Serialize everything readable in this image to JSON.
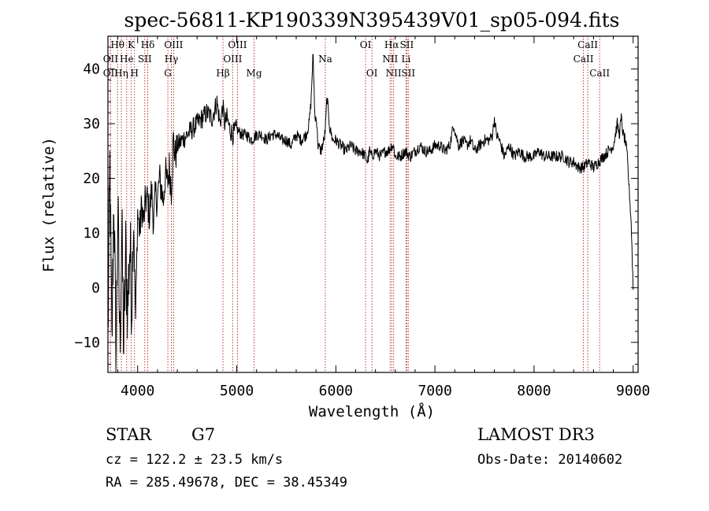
{
  "chart_data": {
    "type": "line",
    "title": "spec-56811-KP190339N395439V01_sp05-094.fits",
    "xlabel": "Wavelength (Å)",
    "ylabel": "Flux (relative)",
    "xlim": [
      3700,
      9050
    ],
    "ylim": [
      -15.5,
      46
    ],
    "xticks": [
      4000,
      5000,
      6000,
      7000,
      8000,
      9000
    ],
    "xtick_labels": [
      "4000",
      "5000",
      "6000",
      "7000",
      "8000",
      "9000"
    ],
    "yticks": [
      -10,
      0,
      10,
      20,
      30,
      40
    ],
    "ytick_labels": [
      "−10",
      "0",
      "10",
      "20",
      "30",
      "40"
    ],
    "series": [
      {
        "name": "flux",
        "x": [
          3700,
          3720,
          3740,
          3760,
          3780,
          3800,
          3820,
          3840,
          3860,
          3880,
          3900,
          3920,
          3940,
          3960,
          3980,
          4000,
          4020,
          4040,
          4060,
          4080,
          4100,
          4120,
          4140,
          4160,
          4180,
          4200,
          4220,
          4240,
          4260,
          4280,
          4300,
          4320,
          4340,
          4360,
          4380,
          4400,
          4450,
          4500,
          4550,
          4600,
          4650,
          4700,
          4750,
          4800,
          4830,
          4860,
          4880,
          4900,
          4930,
          4960,
          5000,
          5050,
          5100,
          5150,
          5200,
          5250,
          5300,
          5350,
          5400,
          5450,
          5500,
          5550,
          5600,
          5650,
          5700,
          5730,
          5750,
          5770,
          5790,
          5800,
          5820,
          5850,
          5880,
          5895,
          5910,
          5940,
          5970,
          6000,
          6050,
          6100,
          6150,
          6200,
          6250,
          6300,
          6320,
          6340,
          6360,
          6400,
          6450,
          6500,
          6530,
          6563,
          6580,
          6600,
          6650,
          6700,
          6750,
          6800,
          6850,
          6900,
          6950,
          7000,
          7050,
          7100,
          7150,
          7190,
          7210,
          7240,
          7280,
          7320,
          7360,
          7400,
          7450,
          7500,
          7550,
          7580,
          7600,
          7620,
          7650,
          7700,
          7750,
          7800,
          7850,
          7900,
          7950,
          8000,
          8050,
          8100,
          8150,
          8200,
          8250,
          8300,
          8350,
          8400,
          8450,
          8500,
          8550,
          8600,
          8650,
          8700,
          8750,
          8800,
          8820,
          8840,
          8860,
          8880,
          8900,
          8920,
          8940,
          8960,
          8980,
          9000
        ],
        "values": [
          -10,
          22,
          -12,
          18,
          -14,
          14,
          -10,
          10,
          -11,
          6,
          -4,
          8,
          -2,
          12,
          -6,
          14,
          10,
          15,
          12,
          16,
          16,
          13,
          18,
          12,
          17,
          16,
          20,
          18,
          16,
          21,
          19,
          22,
          18,
          27,
          24,
          26,
          27,
          28,
          29,
          30,
          31,
          32,
          31,
          34,
          30,
          33,
          30,
          31,
          29,
          28,
          29,
          28,
          28,
          27,
          28,
          28,
          27,
          28,
          28,
          27,
          27,
          26,
          28,
          27,
          28,
          30,
          34,
          43,
          30,
          32,
          26,
          25,
          27,
          29,
          35,
          29,
          27,
          27,
          26,
          25,
          26,
          25,
          25,
          24,
          23,
          25,
          24,
          25,
          24,
          25,
          25,
          26,
          26,
          24,
          24,
          25,
          24,
          25,
          26,
          25,
          25,
          26,
          26,
          25,
          26,
          30,
          28,
          26,
          27,
          26,
          27,
          25,
          26,
          27,
          27,
          28,
          31,
          28,
          27,
          24,
          26,
          24,
          25,
          24,
          24,
          24,
          25,
          24,
          24,
          24,
          24,
          24,
          23,
          23,
          22,
          22,
          23,
          22,
          23,
          24,
          25,
          26,
          28,
          30,
          28,
          31,
          28,
          27,
          24,
          18,
          12,
          0
        ]
      }
    ],
    "annotations": [
      {
        "label": "Hθ",
        "x": 3797,
        "row": 1
      },
      {
        "label": "OII",
        "x": 3727,
        "row": 2
      },
      {
        "label": "OII",
        "x": 3727,
        "row": 3
      },
      {
        "label": "Hη",
        "x": 3835,
        "row": 3
      },
      {
        "label": "He",
        "x": 3889,
        "row": 2
      },
      {
        "label": "K",
        "x": 3934,
        "row": 1
      },
      {
        "label": "H",
        "x": 3968,
        "row": 3
      },
      {
        "label": "Hδ",
        "x": 4102,
        "row": 1
      },
      {
        "label": "SII",
        "x": 4072,
        "row": 2
      },
      {
        "label": "OIII",
        "x": 4363,
        "row": 1
      },
      {
        "label": "Hγ",
        "x": 4340,
        "row": 2
      },
      {
        "label": "G",
        "x": 4305,
        "row": 3
      },
      {
        "label": "OIII",
        "x": 5007,
        "row": 1
      },
      {
        "label": "OIII",
        "x": 4959,
        "row": 2
      },
      {
        "label": "Hβ",
        "x": 4861,
        "row": 3
      },
      {
        "label": "Mg",
        "x": 5175,
        "row": 3
      },
      {
        "label": "Na",
        "x": 5894,
        "row": 2
      },
      {
        "label": "OI",
        "x": 6300,
        "row": 1
      },
      {
        "label": "OI",
        "x": 6364,
        "row": 3
      },
      {
        "label": "Hα",
        "x": 6563,
        "row": 1
      },
      {
        "label": "NII",
        "x": 6548,
        "row": 2
      },
      {
        "label": "NII",
        "x": 6583,
        "row": 3
      },
      {
        "label": "SII",
        "x": 6716,
        "row": 1
      },
      {
        "label": "Li",
        "x": 6708,
        "row": 2
      },
      {
        "label": "SII",
        "x": 6731,
        "row": 3
      },
      {
        "label": "CaII",
        "x": 8542,
        "row": 1
      },
      {
        "label": "CaII",
        "x": 8498,
        "row": 2
      },
      {
        "label": "CaII",
        "x": 8662,
        "row": 3
      }
    ],
    "line_markers": [
      3727,
      3797,
      3835,
      3889,
      3934,
      3968,
      4072,
      4102,
      4305,
      4340,
      4363,
      4861,
      4959,
      5007,
      5175,
      5894,
      6300,
      6364,
      6548,
      6563,
      6583,
      6708,
      6716,
      6731,
      8498,
      8542,
      8662
    ],
    "grid": false,
    "marker_color": "#b22222"
  },
  "info": {
    "object_type": "STAR",
    "subclass": "G7",
    "cz": "cz = 122.2 ± 23.5 km/s",
    "radec": "RA = 285.49678, DEC =  38.45349",
    "survey": "LAMOST DR3",
    "obs_date": "Obs-Date: 20140602"
  }
}
